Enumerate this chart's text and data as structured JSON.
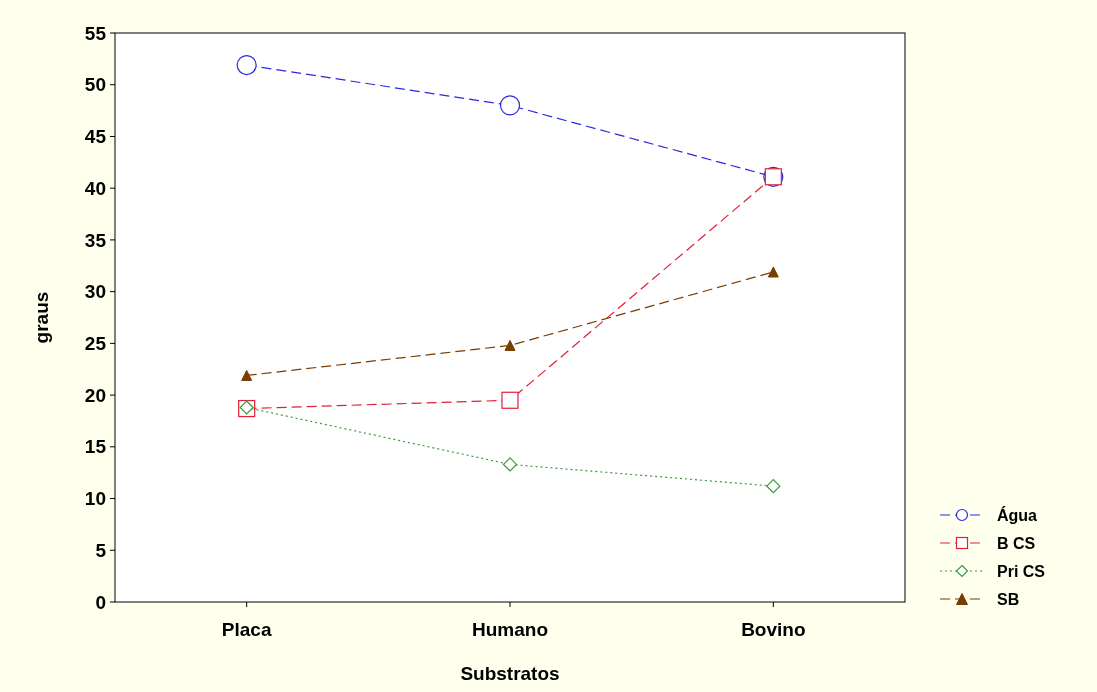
{
  "chart_data": {
    "type": "line",
    "xlabel": "Substratos",
    "ylabel": "graus",
    "categories": [
      "Placa",
      "Humano",
      "Bovino"
    ],
    "series": [
      {
        "name": "Água",
        "color": "#2a2ae0",
        "values": [
          51.9,
          48,
          41.1
        ],
        "marker": "circle",
        "line_style": "dashed"
      },
      {
        "name": "B CS",
        "color": "#e0203a",
        "values": [
          18.7,
          19.5,
          41.1
        ],
        "marker": "square",
        "line_style": "dashed"
      },
      {
        "name": "Pri CS",
        "color": "#3a9a3a",
        "values": [
          18.8,
          13.3,
          11.2
        ],
        "marker": "diamond",
        "line_style": "dotted"
      },
      {
        "name": "SB",
        "color": "#7a3d00",
        "values": [
          21.9,
          24.8,
          31.9
        ],
        "marker": "triangle",
        "line_style": "dashed"
      }
    ],
    "ylim": [
      0,
      55
    ],
    "yticks": [
      0,
      5,
      10,
      15,
      20,
      25,
      30,
      35,
      40,
      45,
      50,
      55
    ],
    "grid": false,
    "legend": "bottom right"
  }
}
